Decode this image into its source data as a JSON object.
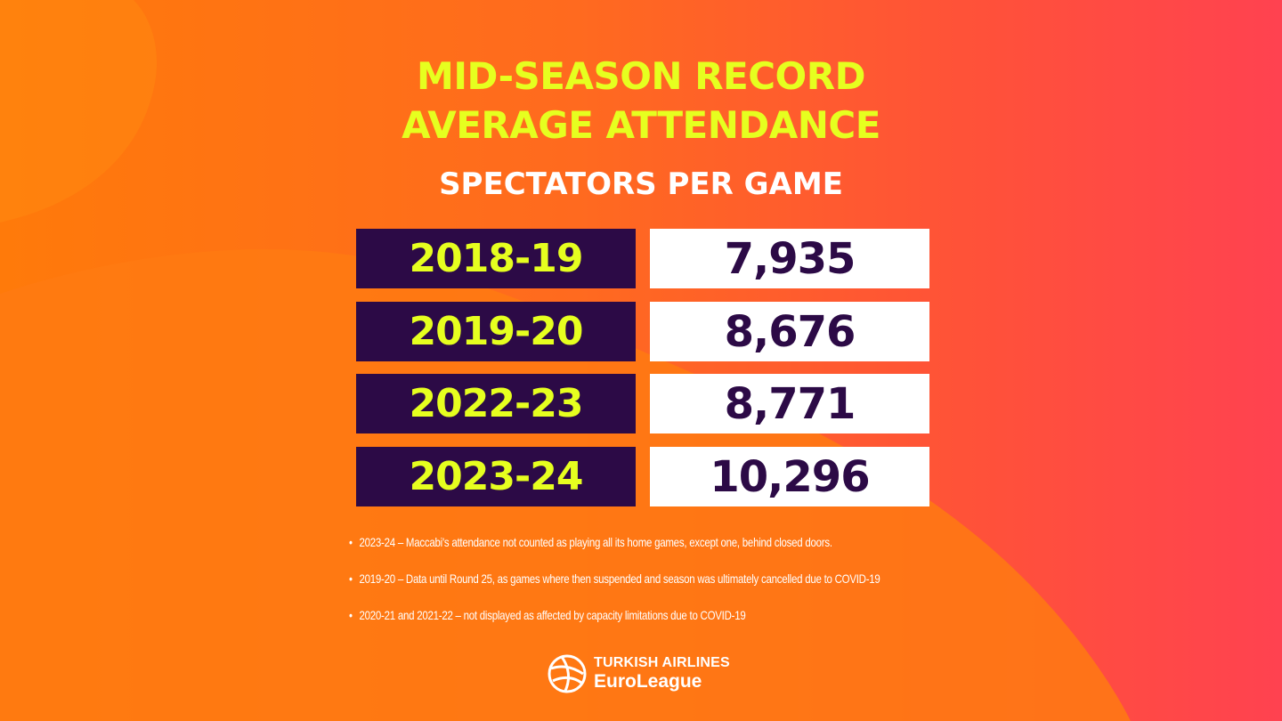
{
  "header": {
    "title_line1": "MID-SEASON RECORD",
    "title_line2": "AVERAGE ATTENDANCE",
    "subtitle": "SPECTATORS PER GAME"
  },
  "colors": {
    "background_start": "#ff7a0a",
    "background_end": "#ff4250",
    "accent_lime": "#e6ff1f",
    "dark_purple": "#2c0a46",
    "white": "#ffffff"
  },
  "chart_data": {
    "type": "table",
    "title": "MID-SEASON RECORD AVERAGE ATTENDANCE",
    "subtitle": "SPECTATORS PER GAME",
    "columns": [],
    "categories": [
      "2018-19",
      "2019-20",
      "2022-23",
      "2023-24"
    ],
    "values": [
      7935,
      8676,
      8771,
      10296
    ],
    "value_labels": [
      "7,935",
      "8,676",
      "8,771",
      "10,296"
    ]
  },
  "notes": [
    "2023-24 – Maccabi's attendance not counted as playing all its home games, except one, behind closed doors.",
    "2019-20 – Data until Round 25, as games where then suspended and season was ultimately cancelled due to COVID-19",
    "2020-21 and 2021-22 – not displayed as affected by capacity limitations due to COVID-19"
  ],
  "logo": {
    "line1": "TURKISH AIRLINES",
    "line2": "EuroLeague",
    "icon": "basketball-logo-icon"
  }
}
